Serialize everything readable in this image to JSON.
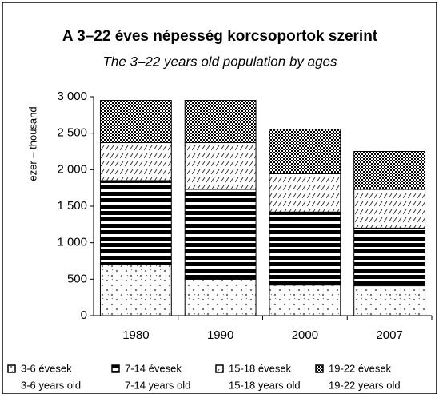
{
  "chart_data": {
    "type": "stacked_bar",
    "title": "A 3–22 éves népesség korcsoportok szerint",
    "subtitle": "The 3–22 years old population by ages",
    "y_label": "ezer – thousand",
    "categories": [
      "1980",
      "1990",
      "2000",
      "2007"
    ],
    "series": [
      {
        "name": "3-6 évesek",
        "name_en": "3-6 years old",
        "color": "#000000",
        "pattern": "dots",
        "values": [
          700,
          500,
          420,
          410
        ]
      },
      {
        "name": "7-14 évesek",
        "name_en": "7-14 years old",
        "color": "#000000",
        "pattern": "stripes",
        "values": [
          1150,
          1230,
          1000,
          790
        ]
      },
      {
        "name": "15-18 évesek",
        "name_en": "15-18 years old",
        "color": "#000000",
        "pattern": "hatch",
        "values": [
          520,
          640,
          525,
          530
        ]
      },
      {
        "name": "19-22 évesek",
        "name_en": "19-22 years old",
        "color": "#000000",
        "pattern": "checker",
        "values": [
          580,
          580,
          610,
          520
        ]
      }
    ],
    "ylim": [
      0,
      3000
    ],
    "yticks": [
      0,
      500,
      {
        "value": 1000,
        "label": "1 000"
      },
      {
        "value": 1500,
        "label": "1 500"
      },
      {
        "value": 2000,
        "label": "2 000"
      },
      {
        "value": 2500,
        "label": "2 500"
      },
      {
        "value": 3000,
        "label": "3 000"
      }
    ],
    "legend": "bottom"
  }
}
